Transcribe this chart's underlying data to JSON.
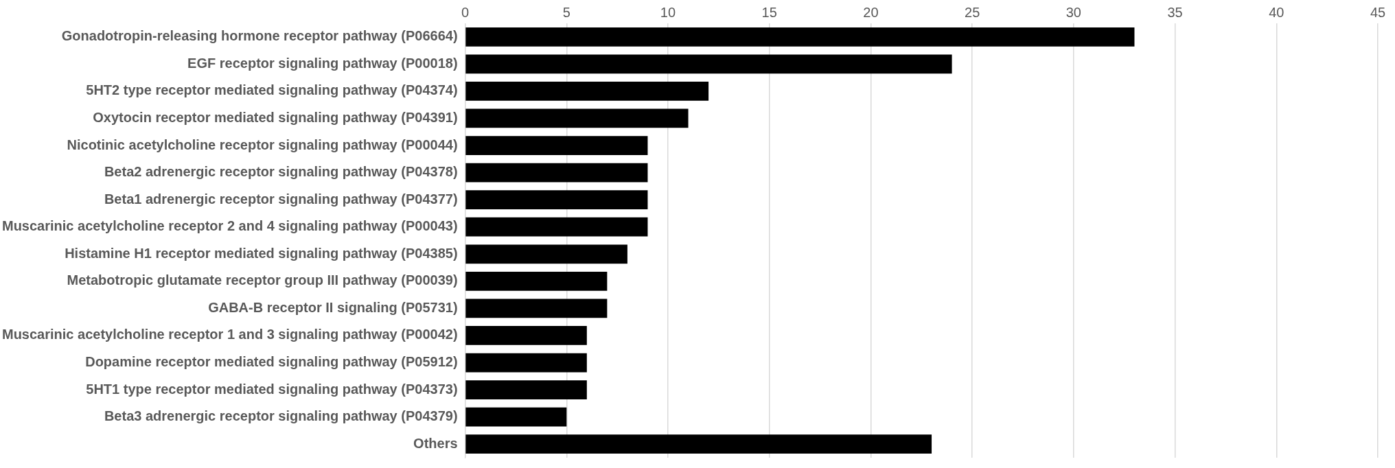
{
  "chart_data": {
    "type": "bar",
    "orientation": "horizontal",
    "categories": [
      "Gonadotropin-releasing hormone receptor pathway (P06664)",
      "EGF receptor signaling pathway (P00018)",
      "5HT2 type receptor mediated signaling pathway (P04374)",
      "Oxytocin receptor mediated signaling pathway (P04391)",
      "Nicotinic acetylcholine receptor signaling pathway (P00044)",
      "Beta2 adrenergic receptor signaling pathway (P04378)",
      "Beta1 adrenergic receptor signaling pathway (P04377)",
      "Muscarinic acetylcholine receptor 2 and 4 signaling pathway (P00043)",
      "Histamine H1 receptor mediated signaling pathway (P04385)",
      "Metabotropic glutamate receptor group III pathway (P00039)",
      "GABA-B receptor II signaling (P05731)",
      "Muscarinic acetylcholine receptor 1 and 3 signaling pathway (P00042)",
      "Dopamine receptor mediated signaling pathway (P05912)",
      "5HT1 type receptor mediated signaling pathway (P04373)",
      "Beta3 adrenergic receptor signaling pathway (P04379)",
      "Others"
    ],
    "values": [
      33,
      24,
      12,
      11,
      9,
      9,
      9,
      9,
      8,
      7,
      7,
      6,
      6,
      6,
      5,
      23
    ],
    "color": "#000000",
    "xlim": [
      0,
      45
    ],
    "xticks": [
      0,
      5,
      10,
      15,
      20,
      25,
      30,
      35,
      40,
      45
    ],
    "grid": "x",
    "legend": false
  }
}
